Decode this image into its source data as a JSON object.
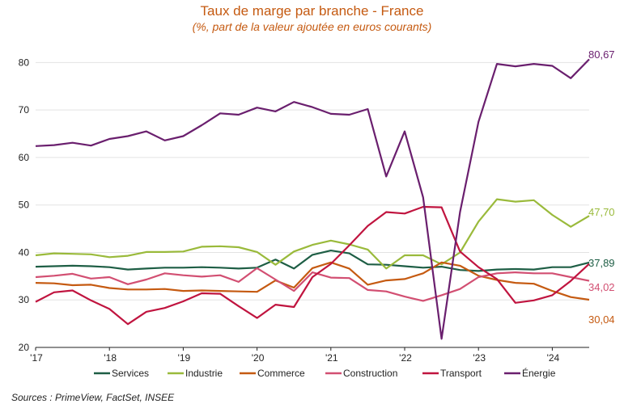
{
  "chart_data": {
    "type": "line",
    "title": "Taux de marge par branche - France",
    "subtitle": "(%, part de la valeur ajoutée en euros courants)",
    "source": "Sources : PrimeView, FactSet, INSEE",
    "xlabel": "",
    "ylabel": "",
    "ylim": [
      20,
      85
    ],
    "yticks": [
      20,
      30,
      40,
      50,
      60,
      70,
      80
    ],
    "xlim": [
      2017,
      2024.5
    ],
    "xticks": [
      {
        "value": 2017,
        "label": "'17"
      },
      {
        "value": 2018,
        "label": "'18"
      },
      {
        "value": 2019,
        "label": "'19"
      },
      {
        "value": 2020,
        "label": "'20"
      },
      {
        "value": 2021,
        "label": "'21"
      },
      {
        "value": 2022,
        "label": "'22"
      },
      {
        "value": 2023,
        "label": "'23"
      },
      {
        "value": 2024,
        "label": "'24"
      }
    ],
    "grid": "horizontal",
    "legend": "bottom",
    "x": [
      2017.0,
      2017.25,
      2017.5,
      2017.75,
      2018.0,
      2018.25,
      2018.5,
      2018.75,
      2019.0,
      2019.25,
      2019.5,
      2019.75,
      2020.0,
      2020.25,
      2020.5,
      2020.75,
      2021.0,
      2021.25,
      2021.5,
      2021.75,
      2022.0,
      2022.25,
      2022.5,
      2022.75,
      2023.0,
      2023.25,
      2023.5,
      2023.75,
      2024.0,
      2024.25,
      2024.5
    ],
    "series": [
      {
        "name": "Services",
        "color": "#1e5e45",
        "end_label": "37,89",
        "values": [
          37.0,
          37.1,
          37.2,
          37.1,
          36.9,
          36.4,
          36.6,
          36.8,
          36.8,
          36.9,
          36.8,
          36.6,
          36.8,
          38.5,
          36.6,
          39.5,
          40.4,
          39.8,
          37.5,
          37.4,
          37.1,
          36.8,
          37.0,
          36.3,
          36.1,
          36.4,
          36.5,
          36.4,
          36.9,
          36.9,
          37.89
        ]
      },
      {
        "name": "Industrie",
        "color": "#9aba3b",
        "end_label": "47,70",
        "values": [
          39.4,
          39.8,
          39.7,
          39.6,
          39.0,
          39.3,
          40.1,
          40.1,
          40.2,
          41.2,
          41.3,
          41.1,
          40.1,
          37.4,
          40.2,
          41.6,
          42.5,
          41.7,
          40.6,
          36.6,
          39.4,
          39.4,
          37.5,
          40.0,
          46.5,
          51.2,
          50.7,
          51.0,
          47.9,
          45.4,
          47.7
        ]
      },
      {
        "name": "Commerce",
        "color": "#c55a11",
        "end_label": "30,04",
        "values": [
          33.6,
          33.5,
          33.1,
          33.2,
          32.5,
          32.2,
          32.2,
          32.3,
          31.9,
          32.0,
          31.9,
          31.8,
          31.7,
          34.1,
          32.6,
          36.7,
          37.9,
          36.6,
          33.2,
          34.1,
          34.4,
          35.6,
          37.9,
          37.2,
          35.1,
          34.2,
          33.6,
          33.4,
          31.9,
          30.6,
          30.04
        ]
      },
      {
        "name": "Construction",
        "color": "#d24f72",
        "end_label": "34,02",
        "values": [
          34.8,
          35.1,
          35.5,
          34.5,
          34.8,
          33.3,
          34.3,
          35.6,
          35.2,
          34.9,
          35.2,
          33.8,
          36.7,
          34.3,
          31.9,
          35.8,
          34.7,
          34.6,
          32.1,
          31.8,
          30.7,
          29.8,
          31.0,
          32.3,
          34.8,
          35.6,
          35.8,
          35.6,
          35.6,
          34.8,
          34.02
        ]
      },
      {
        "name": "Transport",
        "color": "#c0143f",
        "end_label": "",
        "values": [
          29.6,
          31.6,
          32.0,
          29.9,
          28.1,
          24.9,
          27.5,
          28.3,
          29.7,
          31.4,
          31.3,
          28.7,
          26.2,
          29.0,
          28.5,
          34.8,
          37.6,
          41.5,
          45.6,
          48.5,
          48.2,
          49.6,
          49.5,
          40.2,
          36.9,
          34.4,
          29.4,
          29.9,
          31.0,
          34.0,
          37.6
        ]
      },
      {
        "name": "Énergie",
        "color": "#6a1f6e",
        "end_label": "80,67",
        "values": [
          62.4,
          62.6,
          63.1,
          62.5,
          63.9,
          64.5,
          65.5,
          63.6,
          64.5,
          66.8,
          69.3,
          69.0,
          70.5,
          69.7,
          71.7,
          70.6,
          69.2,
          69.0,
          70.2,
          56.0,
          65.5,
          51.6,
          21.8,
          48.5,
          67.5,
          79.7,
          79.2,
          79.7,
          79.3,
          76.7,
          80.67
        ]
      }
    ]
  }
}
